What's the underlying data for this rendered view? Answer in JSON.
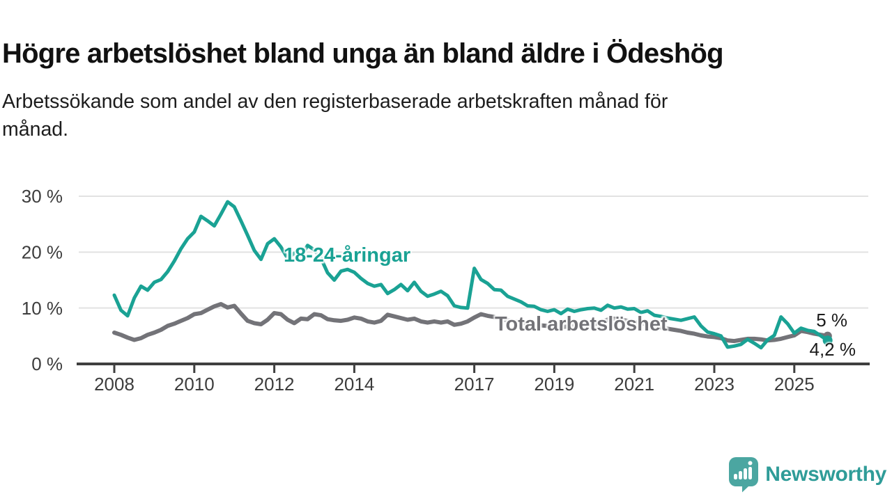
{
  "chart_data": {
    "type": "line",
    "title": "Högre arbetslöshet bland unga än bland äldre i Ödeshög",
    "subtitle": "Arbetssökande som andel av den registerbaserade arbetskraften månad för\nmånad.",
    "x_axis": {
      "ticks": [
        2008,
        2010,
        2012,
        2014,
        2017,
        2019,
        2021,
        2023,
        2025
      ],
      "range": [
        2007.6,
        2026.4
      ]
    },
    "y_axis": {
      "ticks": [
        0,
        10,
        20,
        30
      ],
      "suffix": " %",
      "range": [
        0,
        32
      ],
      "grid": true
    },
    "legend_position": "inline-labels",
    "series": [
      {
        "name": "Total arbetslöshet",
        "color": "#737378",
        "end_label": "5 %",
        "end_value": 5.0,
        "start_year": 2008,
        "step_months": 2,
        "values": [
          5.6,
          5.2,
          4.7,
          4.3,
          4.6,
          5.2,
          5.6,
          6.1,
          6.8,
          7.2,
          7.7,
          8.2,
          8.9,
          9.1,
          9.7,
          10.3,
          10.7,
          10.1,
          10.4,
          9.0,
          7.7,
          7.3,
          7.1,
          7.9,
          9.1,
          8.9,
          7.9,
          7.3,
          8.1,
          8.0,
          8.9,
          8.7,
          8.0,
          7.8,
          7.7,
          7.9,
          8.3,
          8.1,
          7.6,
          7.4,
          7.7,
          8.8,
          8.5,
          8.2,
          7.9,
          8.1,
          7.6,
          7.4,
          7.6,
          7.4,
          7.6,
          7.0,
          7.2,
          7.6,
          8.3,
          8.9,
          8.6,
          8.4,
          8.0,
          7.8,
          7.6,
          7.4,
          7.2,
          7.0,
          6.9,
          6.8,
          6.7,
          6.6,
          6.7,
          6.8,
          6.9,
          7.0,
          7.1,
          7.5,
          7.9,
          8.1,
          7.9,
          7.7,
          7.5,
          7.3,
          7.1,
          6.8,
          6.5,
          6.3,
          6.1,
          5.9,
          5.6,
          5.4,
          5.1,
          4.9,
          4.8,
          4.6,
          4.2,
          4.1,
          4.3,
          4.5,
          4.5,
          4.4,
          4.2,
          4.3,
          4.5,
          4.8,
          5.1,
          5.9,
          5.7,
          5.4,
          5.2,
          5.0
        ]
      },
      {
        "name": "18-24-åringar",
        "color": "#1aa294",
        "end_label": "4,2 %",
        "end_value": 4.2,
        "start_year": 2008,
        "step_months": 2,
        "values": [
          12.3,
          9.6,
          8.6,
          11.8,
          13.9,
          13.2,
          14.6,
          15.1,
          16.5,
          18.4,
          20.6,
          22.4,
          23.6,
          26.4,
          25.6,
          24.7,
          26.8,
          29.0,
          28.1,
          25.6,
          23.0,
          20.3,
          18.7,
          21.5,
          22.4,
          20.9,
          18.9,
          19.8,
          19.2,
          21.2,
          20.4,
          18.9,
          16.3,
          15.0,
          16.6,
          16.9,
          16.4,
          15.3,
          14.4,
          13.9,
          14.2,
          12.6,
          13.3,
          14.2,
          13.1,
          14.6,
          13.0,
          12.1,
          12.5,
          13.0,
          12.2,
          10.4,
          10.1,
          10.0,
          17.1,
          15.1,
          14.4,
          13.3,
          13.2,
          12.1,
          11.6,
          11.1,
          10.4,
          10.3,
          9.7,
          9.4,
          9.7,
          9.0,
          9.8,
          9.4,
          9.7,
          9.9,
          10.0,
          9.6,
          10.5,
          10.0,
          10.2,
          9.8,
          9.9,
          9.2,
          9.5,
          8.7,
          8.5,
          8.2,
          8.0,
          7.8,
          8.1,
          8.4,
          6.8,
          5.7,
          5.4,
          5.0,
          3.0,
          3.2,
          3.5,
          4.4,
          3.7,
          2.9,
          4.3,
          5.1,
          8.4,
          7.2,
          5.5,
          6.4,
          6.0,
          5.8,
          5.0,
          4.2
        ]
      }
    ]
  },
  "style": {
    "accent_teal": "#1aa294",
    "line_gray": "#737378",
    "axis_color": "#3f3f3f",
    "axis_text_color": "#3d3d3d",
    "grid_color": "#e2e2e2",
    "brand_teal": "#4ba6a1"
  },
  "footer": {
    "brand": "Newsworthy"
  }
}
